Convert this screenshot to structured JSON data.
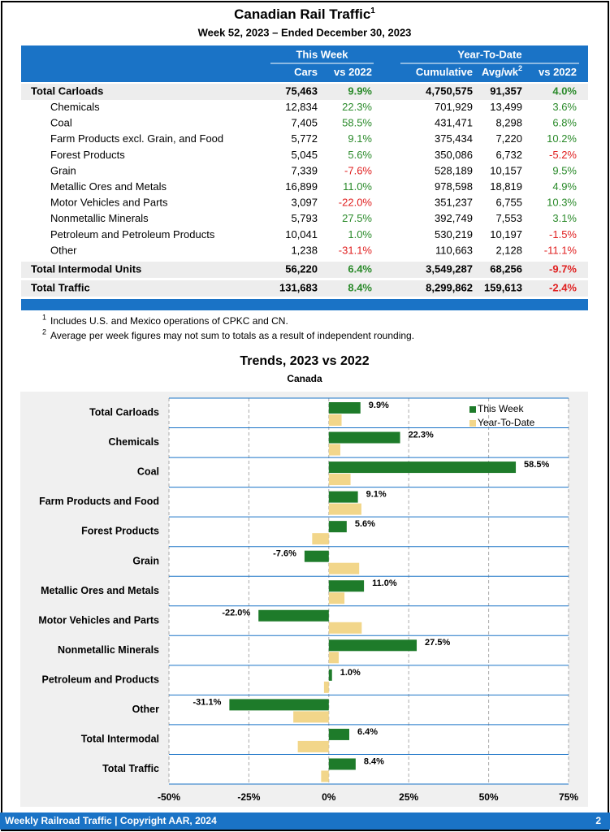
{
  "header": {
    "title": "Canadian Rail Traffic",
    "title_sup": "1",
    "subtitle": "Week 52, 2023 – Ended December 30, 2023"
  },
  "table": {
    "groups": [
      "This Week",
      "Year-To-Date"
    ],
    "columns": [
      {
        "label": "Cars"
      },
      {
        "label": "vs 2022"
      },
      {
        "label": "Cumulative"
      },
      {
        "label": "Avg/wk",
        "sup": "2"
      },
      {
        "label": "vs 2022"
      }
    ],
    "rows": [
      {
        "label": "Total Carloads",
        "total": true,
        "cells": [
          "75,463",
          "9.9%",
          "4,750,575",
          "91,357",
          "4.0%"
        ]
      },
      {
        "label": "Chemicals",
        "cells": [
          "12,834",
          "22.3%",
          "701,929",
          "13,499",
          "3.6%"
        ]
      },
      {
        "label": "Coal",
        "cells": [
          "7,405",
          "58.5%",
          "431,471",
          "8,298",
          "6.8%"
        ]
      },
      {
        "label": "Farm Products excl. Grain, and Food",
        "cells": [
          "5,772",
          "9.1%",
          "375,434",
          "7,220",
          "10.2%"
        ]
      },
      {
        "label": "Forest Products",
        "cells": [
          "5,045",
          "5.6%",
          "350,086",
          "6,732",
          "-5.2%"
        ]
      },
      {
        "label": "Grain",
        "cells": [
          "7,339",
          "-7.6%",
          "528,189",
          "10,157",
          "9.5%"
        ]
      },
      {
        "label": "Metallic Ores and Metals",
        "cells": [
          "16,899",
          "11.0%",
          "978,598",
          "18,819",
          "4.9%"
        ]
      },
      {
        "label": "Motor Vehicles and Parts",
        "cells": [
          "3,097",
          "-22.0%",
          "351,237",
          "6,755",
          "10.3%"
        ]
      },
      {
        "label": "Nonmetallic Minerals",
        "cells": [
          "5,793",
          "27.5%",
          "392,749",
          "7,553",
          "3.1%"
        ]
      },
      {
        "label": "Petroleum and Petroleum Products",
        "cells": [
          "10,041",
          "1.0%",
          "530,219",
          "10,197",
          "-1.5%"
        ]
      },
      {
        "label": "Other",
        "cells": [
          "1,238",
          "-31.1%",
          "110,663",
          "2,128",
          "-11.1%"
        ]
      },
      {
        "label": "Total Intermodal Units",
        "total": true,
        "cells": [
          "56,220",
          "6.4%",
          "3,549,287",
          "68,256",
          "-9.7%"
        ]
      },
      {
        "label": "Total Traffic",
        "total": true,
        "cells": [
          "131,683",
          "8.4%",
          "8,299,862",
          "159,613",
          "-2.4%"
        ]
      }
    ]
  },
  "footnotes": [
    {
      "mark": "1",
      "text": "Includes U.S. and Mexico operations of CPKC and CN."
    },
    {
      "mark": "2",
      "text": "Average per week figures may not sum to totals as a result of independent rounding."
    }
  ],
  "chart_data": {
    "type": "bar",
    "orientation": "horizontal",
    "title": "Trends, 2023 vs 2022",
    "subtitle": "Canada",
    "categories": [
      "Total Carloads",
      "Chemicals",
      "Coal",
      "Farm Products and Food",
      "Forest Products",
      "Grain",
      "Metallic Ores and Metals",
      "Motor Vehicles and Parts",
      "Nonmetallic Minerals",
      "Petroleum and Products",
      "Other",
      "Total Intermodal",
      "Total Traffic"
    ],
    "series": [
      {
        "name": "This Week",
        "color": "#1e7b2a",
        "values": [
          9.9,
          22.3,
          58.5,
          9.1,
          5.6,
          -7.6,
          11.0,
          -22.0,
          27.5,
          1.0,
          -31.1,
          6.4,
          8.4
        ],
        "value_labels": [
          "9.9%",
          "22.3%",
          "58.5%",
          "9.1%",
          "5.6%",
          "-7.6%",
          "11.0%",
          "-22.0%",
          "27.5%",
          "1.0%",
          "-31.1%",
          "6.4%",
          "8.4%"
        ]
      },
      {
        "name": "Year-To-Date",
        "color": "#f2d68a",
        "values": [
          4.0,
          3.6,
          6.8,
          10.2,
          -5.2,
          9.5,
          4.9,
          10.3,
          3.1,
          -1.5,
          -11.1,
          -9.7,
          -2.4
        ]
      }
    ],
    "xlim": [
      -50,
      75
    ],
    "xticks": [
      {
        "value": -50,
        "label": "-50%"
      },
      {
        "value": -25,
        "label": "-25%"
      },
      {
        "value": 0,
        "label": "0%"
      },
      {
        "value": 25,
        "label": "25%"
      },
      {
        "value": 50,
        "label": "50%"
      },
      {
        "value": 75,
        "label": "75%"
      }
    ],
    "grid": true,
    "legend": "upper right"
  },
  "footer": {
    "text": "Weekly Railroad Traffic | Copyright AAR, 2024",
    "page": "2"
  }
}
